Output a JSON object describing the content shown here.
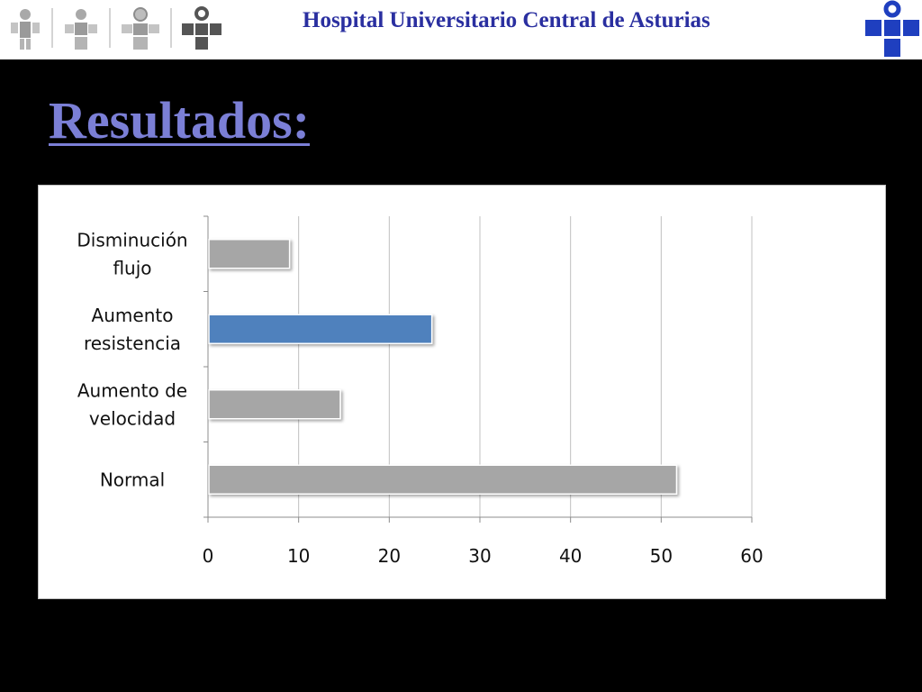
{
  "header": {
    "hospital_name": "Hospital Universitario Central de Asturias",
    "logo_icons": [
      "person-logo-icon",
      "figure-logo-icon",
      "figure-logo-icon",
      "cross-logo-icon"
    ],
    "hospital_logo_icon": "huca-cross-logo-icon"
  },
  "slide": {
    "title": "Resultados:"
  },
  "colors": {
    "background": "#000000",
    "header_background": "#ffffff",
    "hospital_name": "#2a2fa0",
    "title": "#7b7fd6",
    "bar_gray": "#a6a6a6",
    "bar_highlight": "#4f81bd",
    "logo_blue": "#1f3fbf",
    "gridline": "#c0c0c0"
  },
  "chart_data": {
    "type": "bar",
    "orientation": "horizontal",
    "categories": [
      [
        "Disminución",
        "flujo"
      ],
      [
        "Aumento",
        "resistencia"
      ],
      [
        "Aumento de",
        "velocidad"
      ],
      [
        "Normal"
      ]
    ],
    "values": [
      9,
      24.7,
      14.6,
      51.7
    ],
    "highlight_index": 1,
    "title": "",
    "xlabel": "",
    "ylabel": "",
    "xlim": [
      0,
      60
    ],
    "xticks": [
      0,
      10,
      20,
      30,
      40,
      50,
      60
    ],
    "grid": true,
    "legend": "none"
  }
}
